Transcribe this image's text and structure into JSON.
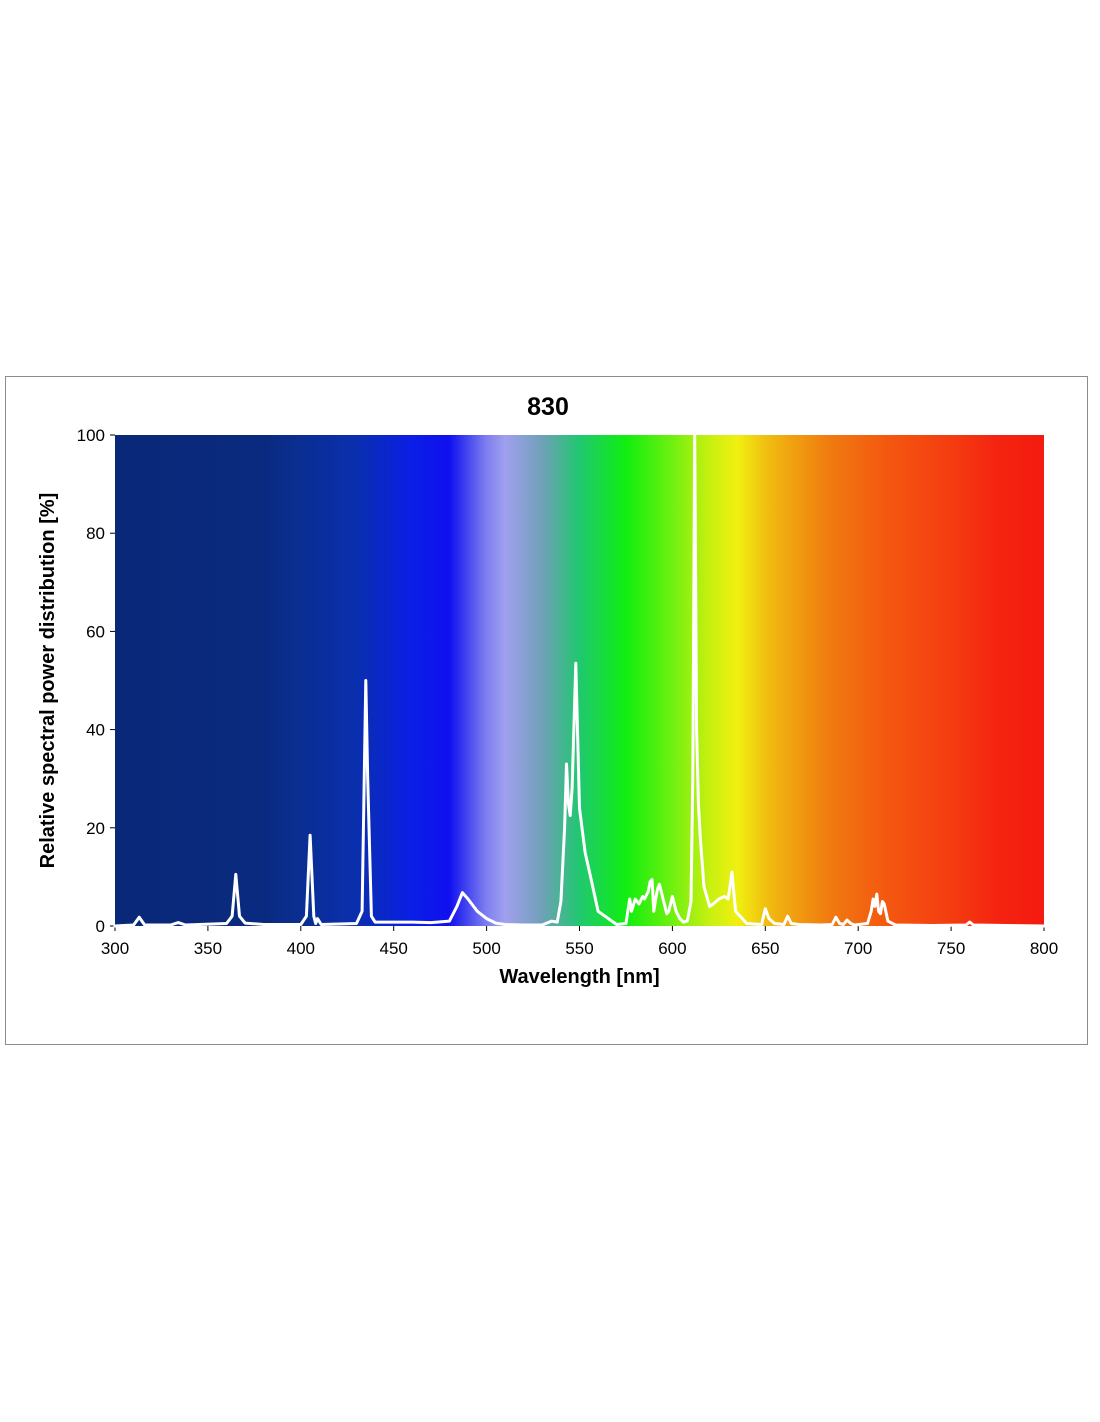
{
  "chart_data": {
    "type": "line",
    "title": "830",
    "xlabel": "Wavelength [nm]",
    "ylabel": "Relative spectral power distribution [%]",
    "xlim": [
      300,
      800
    ],
    "ylim": [
      0,
      100
    ],
    "xticks": [
      300,
      350,
      400,
      450,
      500,
      550,
      600,
      650,
      700,
      750,
      800
    ],
    "yticks": [
      0,
      20,
      40,
      60,
      80,
      100
    ],
    "grid": false,
    "background": "visible-spectrum gradient",
    "line_color": "#ffffff",
    "series": [
      {
        "x": [
          300,
          310,
          313,
          316,
          330,
          334,
          338,
          360,
          363,
          365,
          367,
          370,
          380,
          400,
          403,
          405,
          407,
          408,
          409,
          411,
          430,
          433,
          435,
          436,
          438,
          440,
          460,
          470,
          480,
          484,
          487,
          490,
          495,
          500,
          505,
          510,
          520,
          530,
          535,
          538,
          540,
          542,
          543,
          544,
          545,
          546,
          548,
          550,
          553,
          556,
          560,
          570,
          575,
          577,
          578,
          580,
          582,
          584,
          585,
          587,
          588,
          589,
          590,
          591,
          592,
          593,
          595,
          597,
          598,
          600,
          602,
          604,
          606,
          608,
          610,
          611,
          612,
          613,
          614,
          615,
          617,
          620,
          622,
          625,
          628,
          630,
          631,
          632,
          634,
          640,
          648,
          650,
          652,
          655,
          660,
          662,
          664,
          668,
          680,
          686,
          688,
          690,
          692,
          694,
          696,
          698,
          705,
          707,
          708,
          709,
          710,
          711,
          712,
          713,
          714,
          716,
          720,
          740,
          758,
          760,
          762,
          780,
          800
        ],
        "y": [
          0,
          0.2,
          1.8,
          0.2,
          0.2,
          0.7,
          0.2,
          0.5,
          2,
          10.5,
          2,
          0.6,
          0.3,
          0.3,
          2,
          18.5,
          2,
          0.5,
          1.5,
          0.3,
          0.5,
          3,
          50,
          30,
          2,
          0.8,
          0.8,
          0.7,
          1,
          4,
          6.8,
          5.5,
          3,
          1.5,
          0.6,
          0.3,
          0.2,
          0.2,
          1,
          0.8,
          5,
          20,
          33,
          25,
          22.5,
          28,
          53.5,
          24,
          15,
          10,
          3,
          0.3,
          0.5,
          5.5,
          3,
          5.5,
          4.5,
          6,
          5.5,
          7,
          9,
          9.5,
          3,
          5.5,
          7.5,
          8.5,
          5.5,
          2.5,
          3,
          6,
          3,
          1.5,
          0.8,
          1,
          5,
          30,
          100,
          40,
          25,
          18,
          8,
          4,
          4.5,
          5.5,
          6,
          5.5,
          8,
          11,
          3,
          0.5,
          0.3,
          3.5,
          1.5,
          0.5,
          0.3,
          2,
          0.5,
          0.3,
          0.2,
          0.3,
          1.8,
          0.5,
          0.3,
          1.2,
          0.5,
          0.2,
          0.5,
          3,
          5.5,
          4,
          6.5,
          3,
          2.5,
          5,
          4.5,
          1,
          0.2,
          0.1,
          0.2,
          0.8,
          0.2,
          0.1,
          0
        ]
      }
    ]
  }
}
